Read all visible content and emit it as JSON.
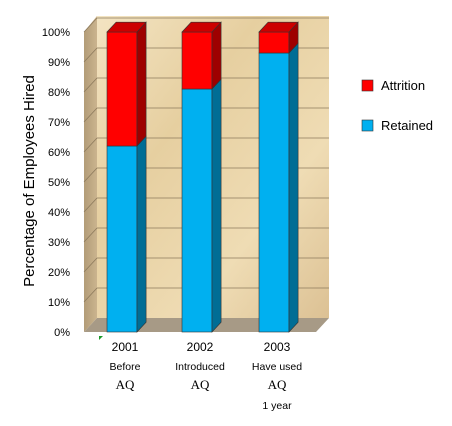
{
  "chart_data": {
    "type": "bar",
    "stacked": true,
    "percent": true,
    "categories": [
      "2001",
      "2002",
      "2003"
    ],
    "category_sublabels": [
      [
        "Before",
        "AQ"
      ],
      [
        "Introduced",
        "AQ"
      ],
      [
        "Have used",
        "AQ",
        "1 year"
      ]
    ],
    "series": [
      {
        "name": "Retained",
        "values": [
          62,
          81,
          93
        ],
        "color": "#00b0f0"
      },
      {
        "name": "Attrition",
        "values": [
          38,
          19,
          7
        ],
        "color": "#ff0000"
      }
    ],
    "ylabel": "Percentage of Employees Hired",
    "ylim": [
      0,
      100
    ],
    "yticks": [
      "0%",
      "10%",
      "20%",
      "30%",
      "40%",
      "50%",
      "60%",
      "70%",
      "80%",
      "90%",
      "100%"
    ],
    "legend": [
      {
        "name": "Attrition",
        "color": "#ff0000"
      },
      {
        "name": "Retained",
        "color": "#00b0f0"
      }
    ],
    "legend_position": "right",
    "grid": true,
    "background": "parchment"
  }
}
